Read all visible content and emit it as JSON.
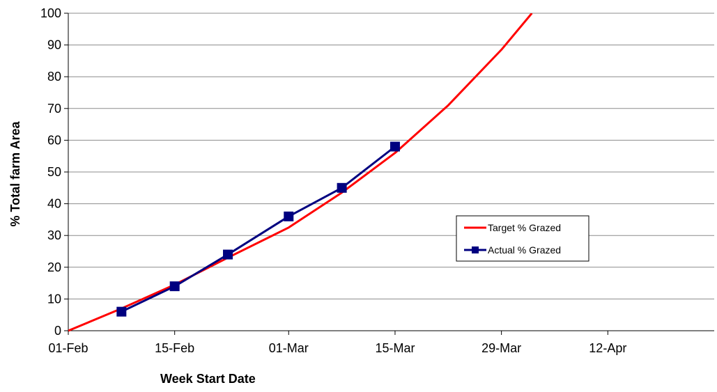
{
  "chart_data": {
    "type": "line",
    "title": "",
    "xlabel": "Week Start Date",
    "ylabel": "% Total farm Area",
    "x_axis": {
      "type": "date",
      "tick_labels": [
        "01-Feb",
        "15-Feb",
        "01-Mar",
        "15-Mar",
        "29-Mar",
        "12-Apr"
      ],
      "range": [
        "01-Feb",
        "26-Apr"
      ]
    },
    "y_axis": {
      "range": [
        0,
        100
      ],
      "ticks": [
        0,
        10,
        20,
        30,
        40,
        50,
        60,
        70,
        80,
        90,
        100
      ]
    },
    "grid": "horizontal major gridlines",
    "legend_position": "right, inside plot area",
    "series": [
      {
        "name": "Target % Grazed",
        "color": "#ff0000",
        "marker": "none",
        "points": [
          {
            "x": "01-Feb",
            "y": 0
          },
          {
            "x": "08-Feb",
            "y": 7
          },
          {
            "x": "15-Feb",
            "y": 14.5
          },
          {
            "x": "22-Feb",
            "y": 23
          },
          {
            "x": "01-Mar",
            "y": 32.5
          },
          {
            "x": "08-Mar",
            "y": 43.5
          },
          {
            "x": "15-Mar",
            "y": 56
          },
          {
            "x": "22-Mar",
            "y": 71
          },
          {
            "x": "29-Mar",
            "y": 88.5
          },
          {
            "x": "02-Apr",
            "y": 100
          }
        ]
      },
      {
        "name": "Actual % Grazed",
        "color": "#000080",
        "marker": "square",
        "points": [
          {
            "x": "08-Feb",
            "y": 6
          },
          {
            "x": "15-Feb",
            "y": 14
          },
          {
            "x": "22-Feb",
            "y": 24
          },
          {
            "x": "01-Mar",
            "y": 36
          },
          {
            "x": "08-Mar",
            "y": 45
          },
          {
            "x": "15-Mar",
            "y": 58
          }
        ]
      }
    ]
  }
}
